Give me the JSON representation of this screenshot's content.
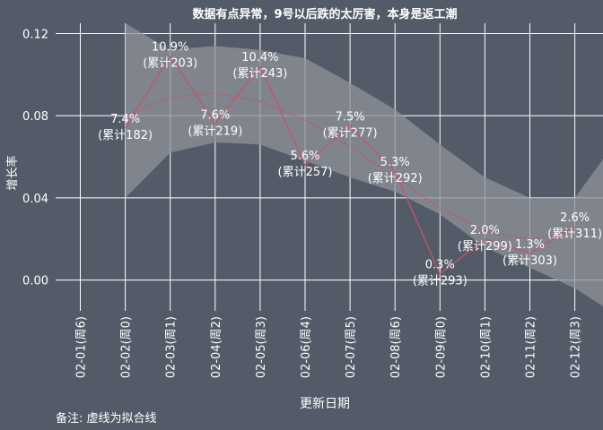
{
  "chart_data": {
    "type": "line",
    "title": "数据有点异常，9号以后跌的太厉害，本身是返工潮",
    "xlabel": "更新日期",
    "ylabel": "增长率",
    "note": "备注: 虚线为拟合线",
    "categories": [
      "02-01(周6)",
      "02-02(周0)",
      "02-03(周1)",
      "02-04(周2)",
      "02-05(周3)",
      "02-06(周4)",
      "02-07(周5)",
      "02-08(周6)",
      "02-09(周0)",
      "02-10(周1)",
      "02-11(周2)",
      "02-12(周3)"
    ],
    "ylim": [
      -0.015,
      0.125
    ],
    "y_ticks": [
      0.0,
      0.04,
      0.08,
      0.12
    ],
    "y_tick_labels": [
      "0.00",
      "0.04",
      "0.08",
      "0.12"
    ],
    "grid": true,
    "series": [
      {
        "style": "solid",
        "values": [
          null,
          0.074,
          0.109,
          0.076,
          0.104,
          0.056,
          0.075,
          0.053,
          0.003,
          0.02,
          0.013,
          0.026
        ],
        "labels": [
          null,
          [
            "7.4%",
            "(累计182)"
          ],
          [
            "10.9%",
            "(累计203)"
          ],
          [
            "7.6%",
            "(累计219)"
          ],
          [
            "10.4%",
            "(累计243)"
          ],
          [
            "5.6%",
            "(累计257)"
          ],
          [
            "7.5%",
            "(累计277)"
          ],
          [
            "5.3%",
            "(累计292)"
          ],
          [
            "0.3%",
            "(累计293)"
          ],
          [
            "2.0%",
            "(累计299)"
          ],
          [
            "1.3%",
            "(累计303)"
          ],
          [
            "2.6%",
            "(累计311)"
          ]
        ]
      },
      {
        "style": "dotted-fit",
        "values": [
          null,
          0.08,
          0.089,
          0.091,
          0.087,
          0.078,
          0.065,
          0.05,
          0.035,
          0.024,
          0.02,
          0.024
        ]
      }
    ],
    "confidence_band": {
      "x": [
        1,
        2,
        3,
        4,
        5,
        6,
        7,
        8,
        9,
        10,
        11,
        12
      ],
      "upper": [
        0.125,
        0.112,
        0.114,
        0.112,
        0.108,
        0.096,
        0.083,
        0.066,
        0.05,
        0.04,
        0.04,
        0.07
      ],
      "lower": [
        0.04,
        0.062,
        0.067,
        0.066,
        0.058,
        0.05,
        0.043,
        0.032,
        0.016,
        0.006,
        -0.004,
        -0.018
      ]
    },
    "colors": {
      "background": "#545b68",
      "line": "#c2566a",
      "band": "#8d9299",
      "grid": "#ffffff",
      "text": "#ffffff"
    }
  }
}
